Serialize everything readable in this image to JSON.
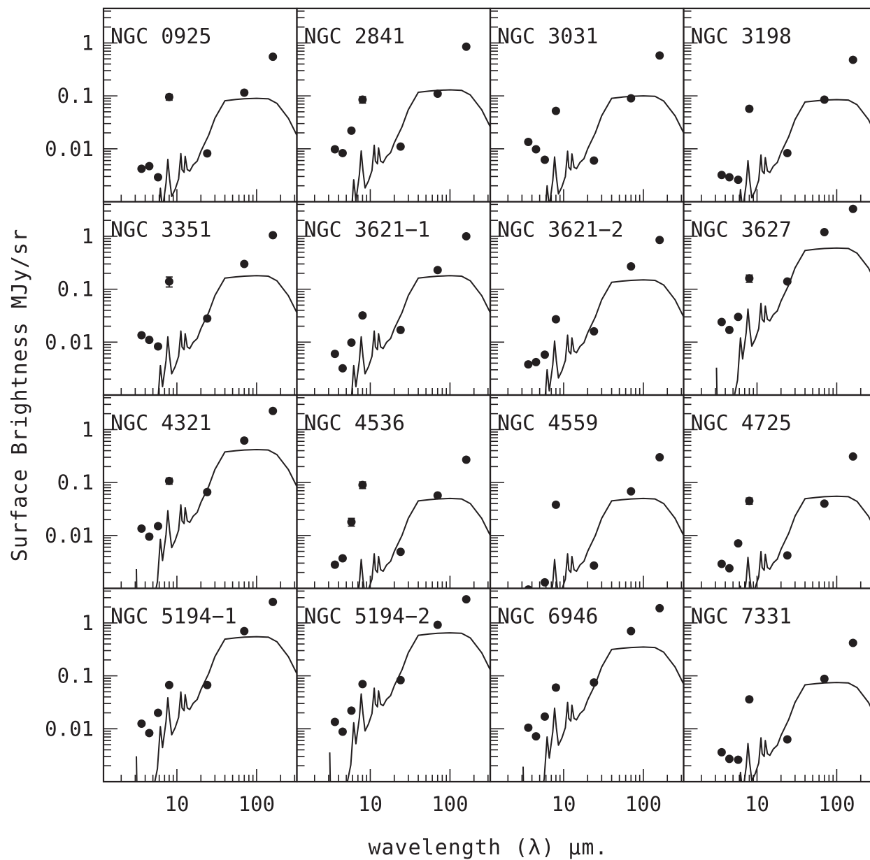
{
  "figure": {
    "ylabel": "Surface Brightness MJy/sr",
    "xlabel": "wavelength (λ) μm.",
    "x_tick_labels": [
      "10",
      "100"
    ],
    "y_tick_labels": [
      "1",
      "0.1",
      "0.01"
    ]
  },
  "chart_data": {
    "type": "scatter",
    "layout": "4x4 grid of panels, shared axes",
    "x_scale": "log",
    "y_scale": "log",
    "xlim": [
      1.2,
      320
    ],
    "ylim": [
      0.001,
      4.5
    ],
    "x_ticks": [
      10,
      100
    ],
    "y_ticks": [
      1,
      0.1,
      0.01
    ],
    "xlabel": "wavelength (λ) μm.",
    "ylabel": "Surface Brightness MJy/sr",
    "grid": false,
    "legend": "none",
    "colors": {
      "ink": "#231f20"
    },
    "point_series": "observed surface brightness (filled circles, some with error bars)",
    "line_series": "model spectrum",
    "model_shape": {
      "wavelength": [
        3.1,
        3.2,
        3.3,
        3.4,
        4.0,
        5.0,
        5.7,
        6.2,
        6.6,
        7.3,
        7.7,
        8.1,
        8.6,
        9.5,
        10.5,
        11.2,
        11.6,
        12.3,
        12.7,
        13.5,
        14.5,
        16.0,
        18.0,
        20.0,
        25.0,
        30.0,
        40.0,
        55.0,
        70.0,
        100.0,
        140.0,
        180.0,
        250.0,
        320.0
      ],
      "relative_flux": [
        0.0055,
        0.0004,
        8e-05,
        5e-05,
        0.0001,
        0.0012,
        0.0032,
        0.02,
        0.008,
        0.025,
        0.07,
        0.03,
        0.014,
        0.019,
        0.03,
        0.09,
        0.045,
        0.04,
        0.08,
        0.045,
        0.042,
        0.055,
        0.065,
        0.1,
        0.2,
        0.42,
        0.9,
        0.95,
        0.98,
        1.0,
        0.98,
        0.8,
        0.42,
        0.2
      ]
    },
    "panels": [
      {
        "name": "NGC 0925",
        "model_peak": 0.09,
        "points": [
          {
            "x": 3.6,
            "y": 0.0042
          },
          {
            "x": 4.5,
            "y": 0.0047
          },
          {
            "x": 5.8,
            "y": 0.0029
          },
          {
            "x": 8.0,
            "y": 0.095,
            "err": 0.012
          },
          {
            "x": 24,
            "y": 0.0082
          },
          {
            "x": 70,
            "y": 0.115
          },
          {
            "x": 160,
            "y": 0.55
          }
        ]
      },
      {
        "name": "NGC 2841",
        "model_peak": 0.13,
        "points": [
          {
            "x": 3.6,
            "y": 0.0098
          },
          {
            "x": 4.5,
            "y": 0.0083
          },
          {
            "x": 5.8,
            "y": 0.022
          },
          {
            "x": 8.0,
            "y": 0.085,
            "err": 0.012
          },
          {
            "x": 24,
            "y": 0.011
          },
          {
            "x": 70,
            "y": 0.11
          },
          {
            "x": 160,
            "y": 0.85
          }
        ]
      },
      {
        "name": "NGC 3031",
        "model_peak": 0.1,
        "points": [
          {
            "x": 3.6,
            "y": 0.0135
          },
          {
            "x": 4.5,
            "y": 0.0098
          },
          {
            "x": 5.8,
            "y": 0.0062
          },
          {
            "x": 8.0,
            "y": 0.052
          },
          {
            "x": 24,
            "y": 0.006
          },
          {
            "x": 70,
            "y": 0.09
          },
          {
            "x": 160,
            "y": 0.58
          }
        ]
      },
      {
        "name": "NGC 3198",
        "model_peak": 0.085,
        "points": [
          {
            "x": 3.6,
            "y": 0.0032
          },
          {
            "x": 4.5,
            "y": 0.0029
          },
          {
            "x": 5.8,
            "y": 0.0026
          },
          {
            "x": 8.0,
            "y": 0.057
          },
          {
            "x": 24,
            "y": 0.0083
          },
          {
            "x": 70,
            "y": 0.085
          },
          {
            "x": 160,
            "y": 0.48
          }
        ]
      },
      {
        "name": "NGC 3351",
        "model_peak": 0.18,
        "points": [
          {
            "x": 3.6,
            "y": 0.0135
          },
          {
            "x": 4.5,
            "y": 0.011
          },
          {
            "x": 5.8,
            "y": 0.0083
          },
          {
            "x": 8.0,
            "y": 0.14,
            "err": 0.03
          },
          {
            "x": 24,
            "y": 0.028
          },
          {
            "x": 70,
            "y": 0.3
          },
          {
            "x": 160,
            "y": 1.05
          }
        ]
      },
      {
        "name": "NGC 3621−1",
        "model_peak": 0.18,
        "points": [
          {
            "x": 3.6,
            "y": 0.006
          },
          {
            "x": 4.5,
            "y": 0.0032
          },
          {
            "x": 5.8,
            "y": 0.0098
          },
          {
            "x": 8.0,
            "y": 0.032
          },
          {
            "x": 24,
            "y": 0.017
          },
          {
            "x": 70,
            "y": 0.23
          },
          {
            "x": 160,
            "y": 1.0
          }
        ]
      },
      {
        "name": "NGC 3621−2",
        "model_peak": 0.15,
        "points": [
          {
            "x": 3.6,
            "y": 0.0038
          },
          {
            "x": 4.5,
            "y": 0.0042
          },
          {
            "x": 5.8,
            "y": 0.0058
          },
          {
            "x": 8.0,
            "y": 0.027
          },
          {
            "x": 24,
            "y": 0.016
          },
          {
            "x": 70,
            "y": 0.27
          },
          {
            "x": 160,
            "y": 0.85
          }
        ]
      },
      {
        "name": "NGC 3627",
        "model_peak": 0.6,
        "points": [
          {
            "x": 3.6,
            "y": 0.024
          },
          {
            "x": 4.5,
            "y": 0.017
          },
          {
            "x": 5.8,
            "y": 0.03
          },
          {
            "x": 8.0,
            "y": 0.16,
            "err": 0.025
          },
          {
            "x": 24,
            "y": 0.14
          },
          {
            "x": 70,
            "y": 1.2
          },
          {
            "x": 160,
            "y": 3.3
          }
        ]
      },
      {
        "name": "NGC 4321",
        "model_peak": 0.42,
        "points": [
          {
            "x": 3.6,
            "y": 0.0135
          },
          {
            "x": 4.5,
            "y": 0.0095
          },
          {
            "x": 5.8,
            "y": 0.015
          },
          {
            "x": 8.0,
            "y": 0.107,
            "err": 0.014
          },
          {
            "x": 24,
            "y": 0.066
          },
          {
            "x": 70,
            "y": 0.62
          },
          {
            "x": 160,
            "y": 2.25
          }
        ]
      },
      {
        "name": "NGC 4536",
        "model_peak": 0.05,
        "points": [
          {
            "x": 3.6,
            "y": 0.0028
          },
          {
            "x": 4.5,
            "y": 0.0037
          },
          {
            "x": 5.8,
            "y": 0.018,
            "err": 0.003
          },
          {
            "x": 8.0,
            "y": 0.09,
            "err": 0.013
          },
          {
            "x": 24,
            "y": 0.0049
          },
          {
            "x": 70,
            "y": 0.057
          },
          {
            "x": 160,
            "y": 0.27
          }
        ]
      },
      {
        "name": "NGC 4559",
        "model_peak": 0.05,
        "points": [
          {
            "x": 3.6,
            "y": 0.00095
          },
          {
            "x": 5.8,
            "y": 0.0013
          },
          {
            "x": 8.0,
            "y": 0.038
          },
          {
            "x": 24,
            "y": 0.0027
          },
          {
            "x": 70,
            "y": 0.068
          },
          {
            "x": 160,
            "y": 0.3
          }
        ]
      },
      {
        "name": "NGC 4725",
        "model_peak": 0.055,
        "points": [
          {
            "x": 3.6,
            "y": 0.0029
          },
          {
            "x": 4.5,
            "y": 0.0024
          },
          {
            "x": 5.8,
            "y": 0.0071
          },
          {
            "x": 8.0,
            "y": 0.045,
            "err": 0.006
          },
          {
            "x": 24,
            "y": 0.0042
          },
          {
            "x": 70,
            "y": 0.04
          },
          {
            "x": 160,
            "y": 0.31
          }
        ]
      },
      {
        "name": "NGC 5194−1",
        "model_peak": 0.55,
        "points": [
          {
            "x": 3.6,
            "y": 0.0125
          },
          {
            "x": 4.5,
            "y": 0.0083
          },
          {
            "x": 5.8,
            "y": 0.02
          },
          {
            "x": 8.0,
            "y": 0.067
          },
          {
            "x": 24,
            "y": 0.067
          },
          {
            "x": 70,
            "y": 0.7
          },
          {
            "x": 160,
            "y": 2.5
          }
        ]
      },
      {
        "name": "NGC 5194−2",
        "model_peak": 0.65,
        "points": [
          {
            "x": 3.6,
            "y": 0.0135
          },
          {
            "x": 4.5,
            "y": 0.0088
          },
          {
            "x": 5.8,
            "y": 0.022
          },
          {
            "x": 8.0,
            "y": 0.07
          },
          {
            "x": 24,
            "y": 0.083
          },
          {
            "x": 70,
            "y": 0.92
          },
          {
            "x": 160,
            "y": 2.8
          }
        ]
      },
      {
        "name": "NGC 6946",
        "model_peak": 0.35,
        "points": [
          {
            "x": 3.6,
            "y": 0.0105
          },
          {
            "x": 4.5,
            "y": 0.0072
          },
          {
            "x": 5.8,
            "y": 0.017
          },
          {
            "x": 8.0,
            "y": 0.06
          },
          {
            "x": 24,
            "y": 0.075
          },
          {
            "x": 70,
            "y": 0.7
          },
          {
            "x": 160,
            "y": 1.9
          }
        ]
      },
      {
        "name": "NGC 7331",
        "model_peak": 0.075,
        "points": [
          {
            "x": 3.6,
            "y": 0.0036
          },
          {
            "x": 4.5,
            "y": 0.0027
          },
          {
            "x": 5.8,
            "y": 0.0026
          },
          {
            "x": 8.0,
            "y": 0.036
          },
          {
            "x": 24,
            "y": 0.0063
          },
          {
            "x": 70,
            "y": 0.088
          },
          {
            "x": 160,
            "y": 0.42
          }
        ]
      }
    ]
  }
}
